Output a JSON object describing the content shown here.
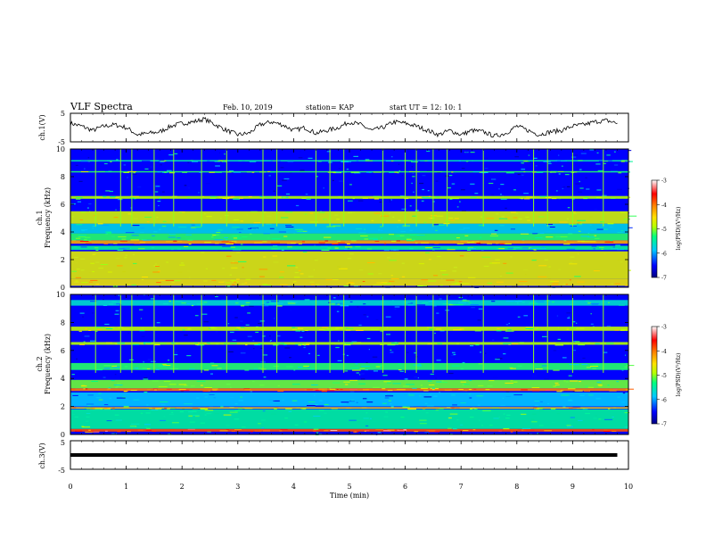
{
  "header": {
    "title": "VLF Spectra",
    "date": "Feb. 10, 2019",
    "station": "station= KAP",
    "start": "start  UT =   12: 10: 1"
  },
  "chart_data": [
    {
      "type": "line",
      "id": "ch1-waveform",
      "ylabel": "ch.1(V)",
      "ylim": [
        -5,
        5
      ],
      "y_ticks": [
        "5",
        "-5"
      ],
      "xlim": [
        0,
        10
      ],
      "x": [
        0,
        0.2,
        0.4,
        0.6,
        0.8,
        1.0,
        1.2,
        1.4,
        1.6,
        1.8,
        2.0,
        2.2,
        2.4,
        2.6,
        2.8,
        3.0,
        3.2,
        3.4,
        3.6,
        3.8,
        4.0,
        4.2,
        4.4,
        4.6,
        4.8,
        5.0,
        5.2,
        5.4,
        5.6,
        5.8,
        6.0,
        6.2,
        6.4,
        6.6,
        6.8,
        7.0,
        7.2,
        7.4,
        7.6,
        7.8,
        8.0,
        8.2,
        8.4,
        8.6,
        8.8,
        9.0,
        9.2,
        9.4,
        9.6,
        9.8
      ],
      "y": [
        1.5,
        0.5,
        -1,
        0.5,
        1,
        0,
        -2.5,
        -2,
        -1.5,
        0.5,
        1.5,
        2,
        3,
        1,
        -1,
        -2.5,
        -2,
        1,
        2,
        1,
        -1,
        0,
        -2,
        -1,
        0,
        2,
        1,
        -1,
        0,
        2,
        1.5,
        0.5,
        -1,
        -2.5,
        -1,
        -2.5,
        -1,
        -1.5,
        -3,
        -2,
        0.5,
        -1,
        -2.5,
        -1.5,
        -1,
        0.5,
        1,
        2,
        2.5,
        1.5
      ]
    },
    {
      "type": "heatmap",
      "id": "ch1-spectrogram",
      "ylabel_line1": "ch.1",
      "ylabel_line2": "Frequency  (kHz)",
      "ylim": [
        0,
        10
      ],
      "y_ticks": [
        "0",
        "2",
        "4",
        "6",
        "8",
        "10"
      ],
      "xlim": [
        0,
        10
      ],
      "colorbar": {
        "label": "log(PSD)(V²/Hz)",
        "range": [
          -7,
          -3
        ],
        "ticks": [
          "-3",
          "-4",
          "-5",
          "-6",
          "-7"
        ]
      },
      "background_level": -6.5,
      "bands": [
        {
          "f": [
            0.1,
            0.6
          ],
          "level": -4.6
        },
        {
          "f": [
            0.6,
            2.6
          ],
          "level": -4.7
        },
        {
          "f": [
            2.7,
            3.0
          ],
          "level": -5.6
        },
        {
          "f": [
            3.15,
            3.4
          ],
          "level": -4.2
        },
        {
          "f": [
            3.4,
            3.9
          ],
          "level": -5.4
        },
        {
          "f": [
            3.9,
            4.6
          ],
          "level": -5.9
        },
        {
          "f": [
            4.6,
            5.5
          ],
          "level": -4.8
        },
        {
          "f": [
            6.4,
            6.6
          ],
          "level": -5.0
        },
        {
          "f": [
            8.3,
            8.4
          ],
          "level": -5.4
        },
        {
          "f": [
            9.1,
            9.2
          ],
          "level": -5.7
        }
      ],
      "spikes_min": [
        0.45,
        0.9,
        1.1,
        1.5,
        1.85,
        2.35,
        2.8,
        3.45,
        3.7,
        4.4,
        4.65,
        4.9,
        5.6,
        6.0,
        6.2,
        6.5,
        6.75,
        7.4,
        8.3,
        8.55,
        9.0,
        9.55
      ]
    },
    {
      "type": "heatmap",
      "id": "ch2-spectrogram",
      "ylabel_line1": "ch.2",
      "ylabel_line2": "Frequency  (kHz)",
      "ylim": [
        0,
        10
      ],
      "y_ticks": [
        "0",
        "2",
        "4",
        "6",
        "8",
        "10"
      ],
      "xlim": [
        0,
        10
      ],
      "colorbar": {
        "label": "log(PSD)(V²/Hz)",
        "range": [
          -7,
          -3
        ],
        "ticks": [
          "-3",
          "-4",
          "-5",
          "-6",
          "-7"
        ]
      },
      "background_level": -6.5,
      "bands": [
        {
          "f": [
            0.2,
            0.4
          ],
          "level": -3.8
        },
        {
          "f": [
            0.4,
            1.8
          ],
          "level": -5.6
        },
        {
          "f": [
            1.85,
            1.95
          ],
          "level": -4.5
        },
        {
          "f": [
            2.0,
            3.0
          ],
          "level": -6.0
        },
        {
          "f": [
            3.1,
            3.3
          ],
          "level": -4.0
        },
        {
          "f": [
            3.3,
            3.9
          ],
          "level": -5.2
        },
        {
          "f": [
            4.6,
            5.1
          ],
          "level": -5.4
        },
        {
          "f": [
            6.4,
            6.6
          ],
          "level": -5.0
        },
        {
          "f": [
            7.4,
            7.7
          ],
          "level": -4.9
        },
        {
          "f": [
            9.2,
            9.6
          ],
          "level": -5.8
        }
      ],
      "spikes_min": [
        0.45,
        0.9,
        1.1,
        1.5,
        1.85,
        2.35,
        2.8,
        3.45,
        3.7,
        4.4,
        4.65,
        4.9,
        5.6,
        6.0,
        6.2,
        6.5,
        6.75,
        7.4,
        8.3,
        8.55,
        9.0,
        9.55
      ]
    },
    {
      "type": "line",
      "id": "ch3-waveform",
      "ylabel": "ch.3(V)",
      "ylim": [
        -5,
        5
      ],
      "y_ticks": [
        "5",
        "-5"
      ],
      "xlim": [
        0,
        10
      ],
      "x": [
        0,
        9.8
      ],
      "y": [
        0,
        0
      ]
    }
  ],
  "time_axis": {
    "label": "Time  (min)",
    "ticks": [
      "0",
      "1",
      "2",
      "3",
      "4",
      "5",
      "6",
      "7",
      "8",
      "9",
      "10"
    ]
  },
  "colors": {
    "axis": "#000000",
    "trace": "#000000",
    "colormap": [
      "#000080",
      "#0000ff",
      "#00c8ff",
      "#00ff80",
      "#b4ff00",
      "#ffe000",
      "#ff8000",
      "#ff0000",
      "#ffffff"
    ]
  }
}
